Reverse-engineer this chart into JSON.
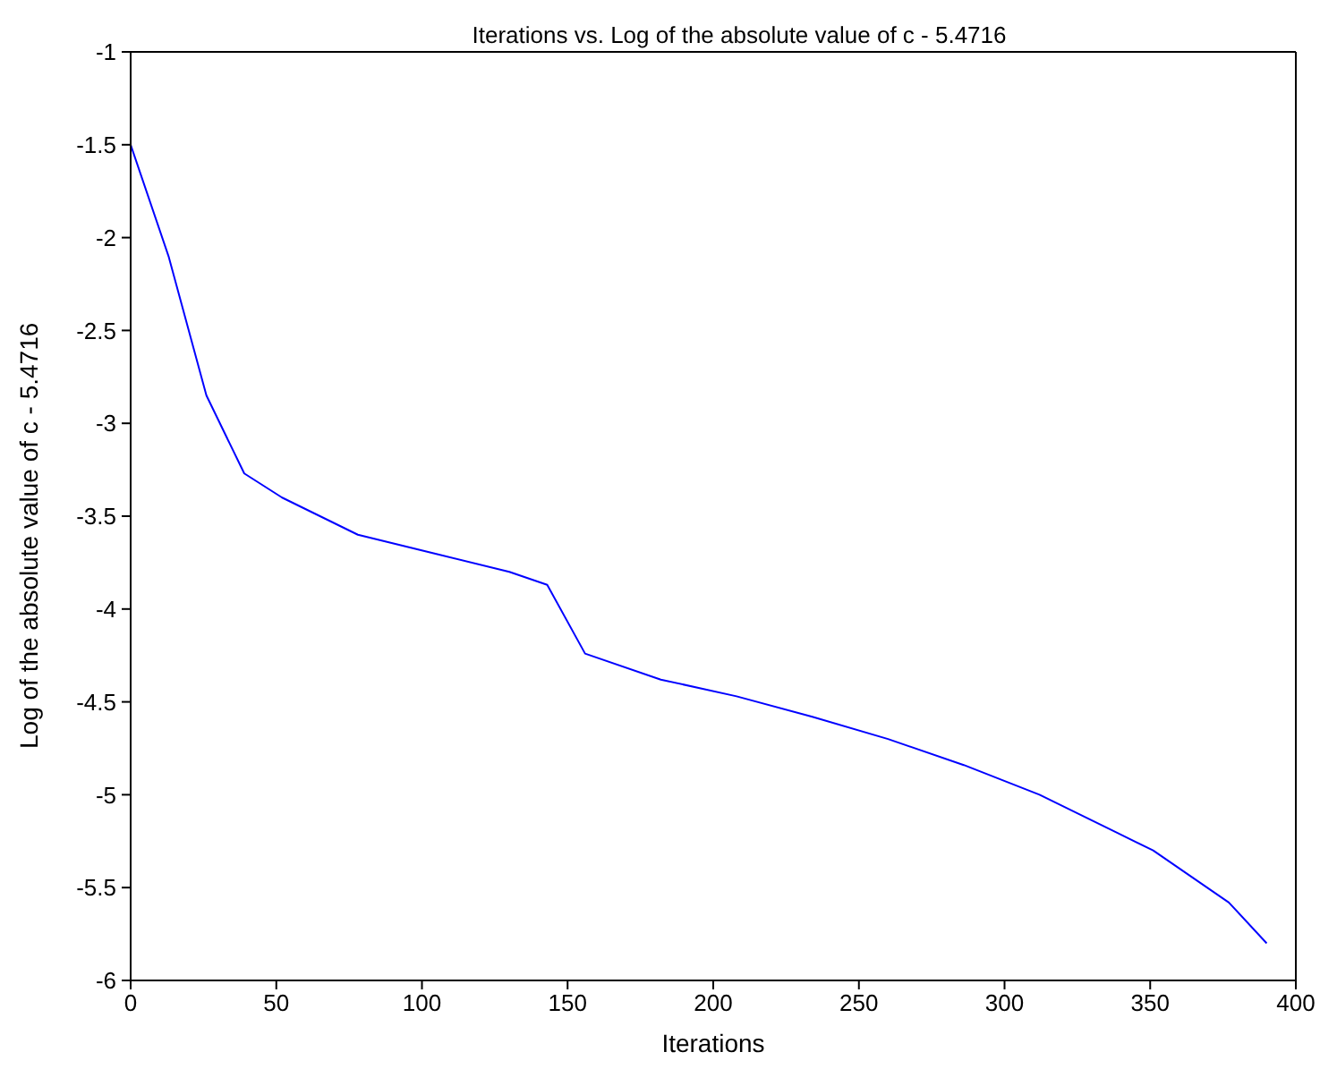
{
  "chart_data": {
    "type": "line",
    "title": "Iterations vs. Log of the absolute value of c - 5.4716",
    "xlabel": "Iterations",
    "ylabel": "Log of the absolute value of c - 5.4716",
    "x": [
      0,
      13,
      26,
      39,
      52,
      65,
      78,
      104,
      130,
      143,
      156,
      182,
      208,
      234,
      260,
      286,
      312,
      338,
      351,
      377,
      390
    ],
    "series": [
      {
        "color": "#0000ff",
        "values": [
          -1.5,
          -2.1,
          -2.85,
          -3.27,
          -3.4,
          -3.5,
          -3.6,
          -3.7,
          -3.8,
          -3.87,
          -4.24,
          -4.38,
          -4.47,
          -4.58,
          -4.7,
          -4.84,
          -5.0,
          -5.2,
          -5.3,
          -5.58,
          -5.8
        ]
      }
    ],
    "xlim": [
      0,
      400
    ],
    "xticks": [
      0,
      50,
      100,
      150,
      200,
      250,
      300,
      350,
      400
    ],
    "ylim": [
      -6,
      -1
    ],
    "yticks": [
      -6,
      -5.5,
      -5,
      -4.5,
      -4,
      -3.5,
      -3,
      -2.5,
      -2,
      -1.5,
      -1
    ],
    "grid": false,
    "legend": false,
    "marker": "none",
    "line_style": "solid"
  }
}
